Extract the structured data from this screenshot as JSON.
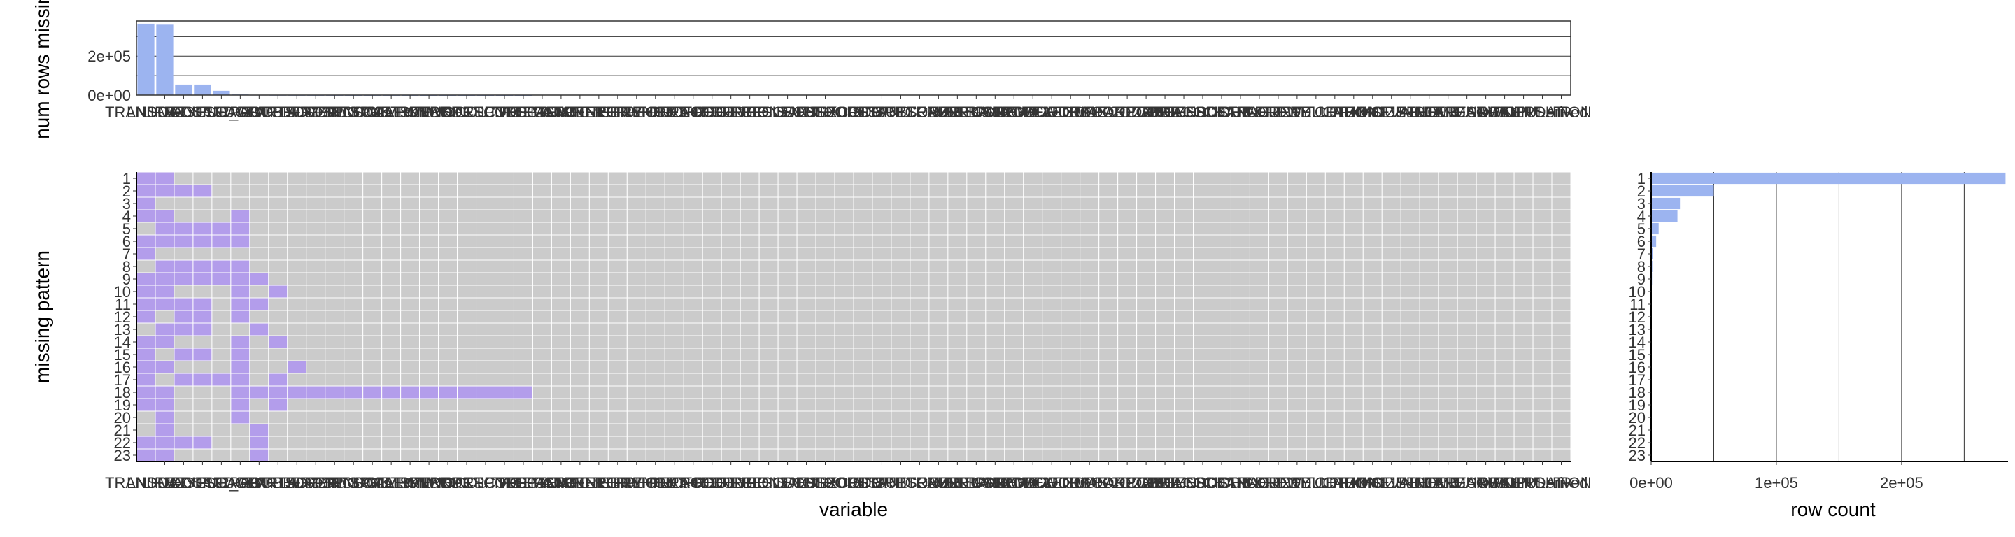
{
  "chart_data": [
    {
      "type": "bar",
      "title": "",
      "xlabel": "",
      "ylabel": "num rows missing:",
      "ylim": [
        0,
        380000
      ],
      "y_ticks": [
        "0e+00",
        "2e+05"
      ],
      "y_tick_values": [
        0,
        200000
      ],
      "grid": true,
      "bar_color": "#9CB4F0",
      "categories": [
        "TRANSDAT",
        "LNDOCCU",
        "LIFECYCLE",
        "MEDSPNDG",
        "AGESCALEW",
        "PUR_OCCU",
        "TPARTFLA",
        "TPARTFLM",
        "ARTSOPER",
        "BEDSPNDG",
        "FRDSPNDG",
        "GIFTSPND",
        "INCSCALEW",
        "LOCATION",
        "MKTSPEND",
        "MRKTCODE",
        "NRKIND",
        "NWSPRSPND",
        "OCCUTYPE",
        "PCTCOLLEGE",
        "PCTHSPANIC",
        "PCTMANUF",
        "PCTOWNER",
        "PCTRENTER",
        "PCTRETIRE",
        "PCTSERVICE",
        "PCTWHITE",
        "PCTYOUTH",
        "PHONECODE",
        "PROFCODE",
        "RACECODE",
        "RECTYPE",
        "REGION",
        "RELCODE",
        "RESLENGTH",
        "SALUTE",
        "SCHLCODE",
        "SEXCODE",
        "SPORTSPND",
        "STATE",
        "STORECODE",
        "SUBSCRIBE",
        "TENURE",
        "TRAVELSPND",
        "UNITCODE",
        "URBANCODE",
        "USERCODE",
        "VALUECODE",
        "VEHICLECODE",
        "WEALTHCODE",
        "WORKCODE",
        "XMASCODE",
        "YEARCODE",
        "ZIPCODE",
        "ZIPPLUS",
        "AREACODE",
        "BUYERCODE",
        "CENSUSTRACT",
        "CHANNEL",
        "CHILDREN",
        "COUNTY",
        "CREDITCD",
        "DWELLING",
        "EDUCATION",
        "ETHNIC",
        "FAMSIZE",
        "HOMEVALUE",
        "HOUSEHOLD",
        "INCOME",
        "INTEREST",
        "LANGUAGE",
        "MARITAL",
        "ORIGIN",
        "OWNERSHIP",
        "POPULATION",
        "Derived"
      ],
      "values": [
        366000,
        361000,
        54000,
        54000,
        22000,
        3000,
        1500,
        800,
        500,
        300,
        200,
        150,
        100,
        80,
        60,
        40,
        30,
        20,
        15,
        10,
        5,
        0,
        0,
        0,
        0,
        0,
        0,
        0,
        0,
        0,
        0,
        0,
        0,
        0,
        0,
        0,
        0,
        0,
        0,
        0,
        0,
        0,
        0,
        0,
        0,
        0,
        0,
        0,
        0,
        0,
        0,
        0,
        0,
        0,
        0,
        0,
        0,
        0,
        0,
        0,
        0,
        0,
        0,
        0,
        0,
        0,
        0,
        0,
        0,
        0,
        0,
        0,
        0,
        0,
        0,
        0
      ]
    },
    {
      "type": "heatmap",
      "title": "",
      "xlabel": "variable",
      "ylabel": "missing pattern",
      "patterns": [
        "1",
        "2",
        "3",
        "4",
        "5",
        "6",
        "7",
        "8",
        "9",
        "10",
        "11",
        "12",
        "13",
        "14",
        "15",
        "16",
        "17",
        "18",
        "19",
        "20",
        "21",
        "22",
        "23"
      ],
      "missing_color": "#B39DEB",
      "present_color": "#CBCBCB",
      "missing_cells": [
        [
          0,
          1
        ],
        [
          0,
          1,
          2,
          3
        ],
        [
          0
        ],
        [
          0,
          1,
          5
        ],
        [
          1,
          2,
          3,
          4,
          5
        ],
        [
          0,
          1,
          2,
          3,
          4,
          5
        ],
        [
          0
        ],
        [
          1,
          2,
          3,
          4,
          5
        ],
        [
          0,
          1,
          2,
          3,
          4,
          5,
          6
        ],
        [
          0,
          1,
          5,
          7
        ],
        [
          0,
          1,
          2,
          3,
          5,
          6
        ],
        [
          0,
          2,
          3,
          5
        ],
        [
          1,
          2,
          3,
          6
        ],
        [
          0,
          1,
          5,
          7
        ],
        [
          0,
          2,
          3,
          5
        ],
        [
          0,
          1,
          5,
          8
        ],
        [
          0,
          2,
          3,
          4,
          5,
          7
        ],
        [
          0,
          1,
          5,
          6,
          7,
          8,
          9,
          10,
          11,
          12,
          13,
          14,
          15,
          16,
          17,
          18,
          19,
          20
        ],
        [
          0,
          1,
          5,
          7
        ],
        [
          1,
          5
        ],
        [
          1,
          6
        ],
        [
          0,
          1,
          2,
          3,
          6
        ],
        [
          0,
          1,
          6
        ]
      ]
    },
    {
      "type": "bar",
      "orientation": "horizontal",
      "title": "",
      "xlabel": "row count",
      "ylabel": "",
      "xlim": [
        0,
        285000
      ],
      "x_ticks": [
        "0e+00",
        "1e+05",
        "2e+05"
      ],
      "x_tick_values": [
        0,
        100000,
        200000
      ],
      "grid": true,
      "bar_color": "#9CB4F0",
      "categories": [
        "1",
        "2",
        "3",
        "4",
        "5",
        "6",
        "7",
        "8",
        "9",
        "10",
        "11",
        "12",
        "13",
        "14",
        "15",
        "16",
        "17",
        "18",
        "19",
        "20",
        "21",
        "22",
        "23"
      ],
      "values": [
        283000,
        50000,
        23000,
        21000,
        6000,
        4000,
        1500,
        900,
        700,
        500,
        400,
        300,
        250,
        200,
        150,
        120,
        100,
        80,
        60,
        50,
        40,
        30,
        20
      ]
    }
  ]
}
